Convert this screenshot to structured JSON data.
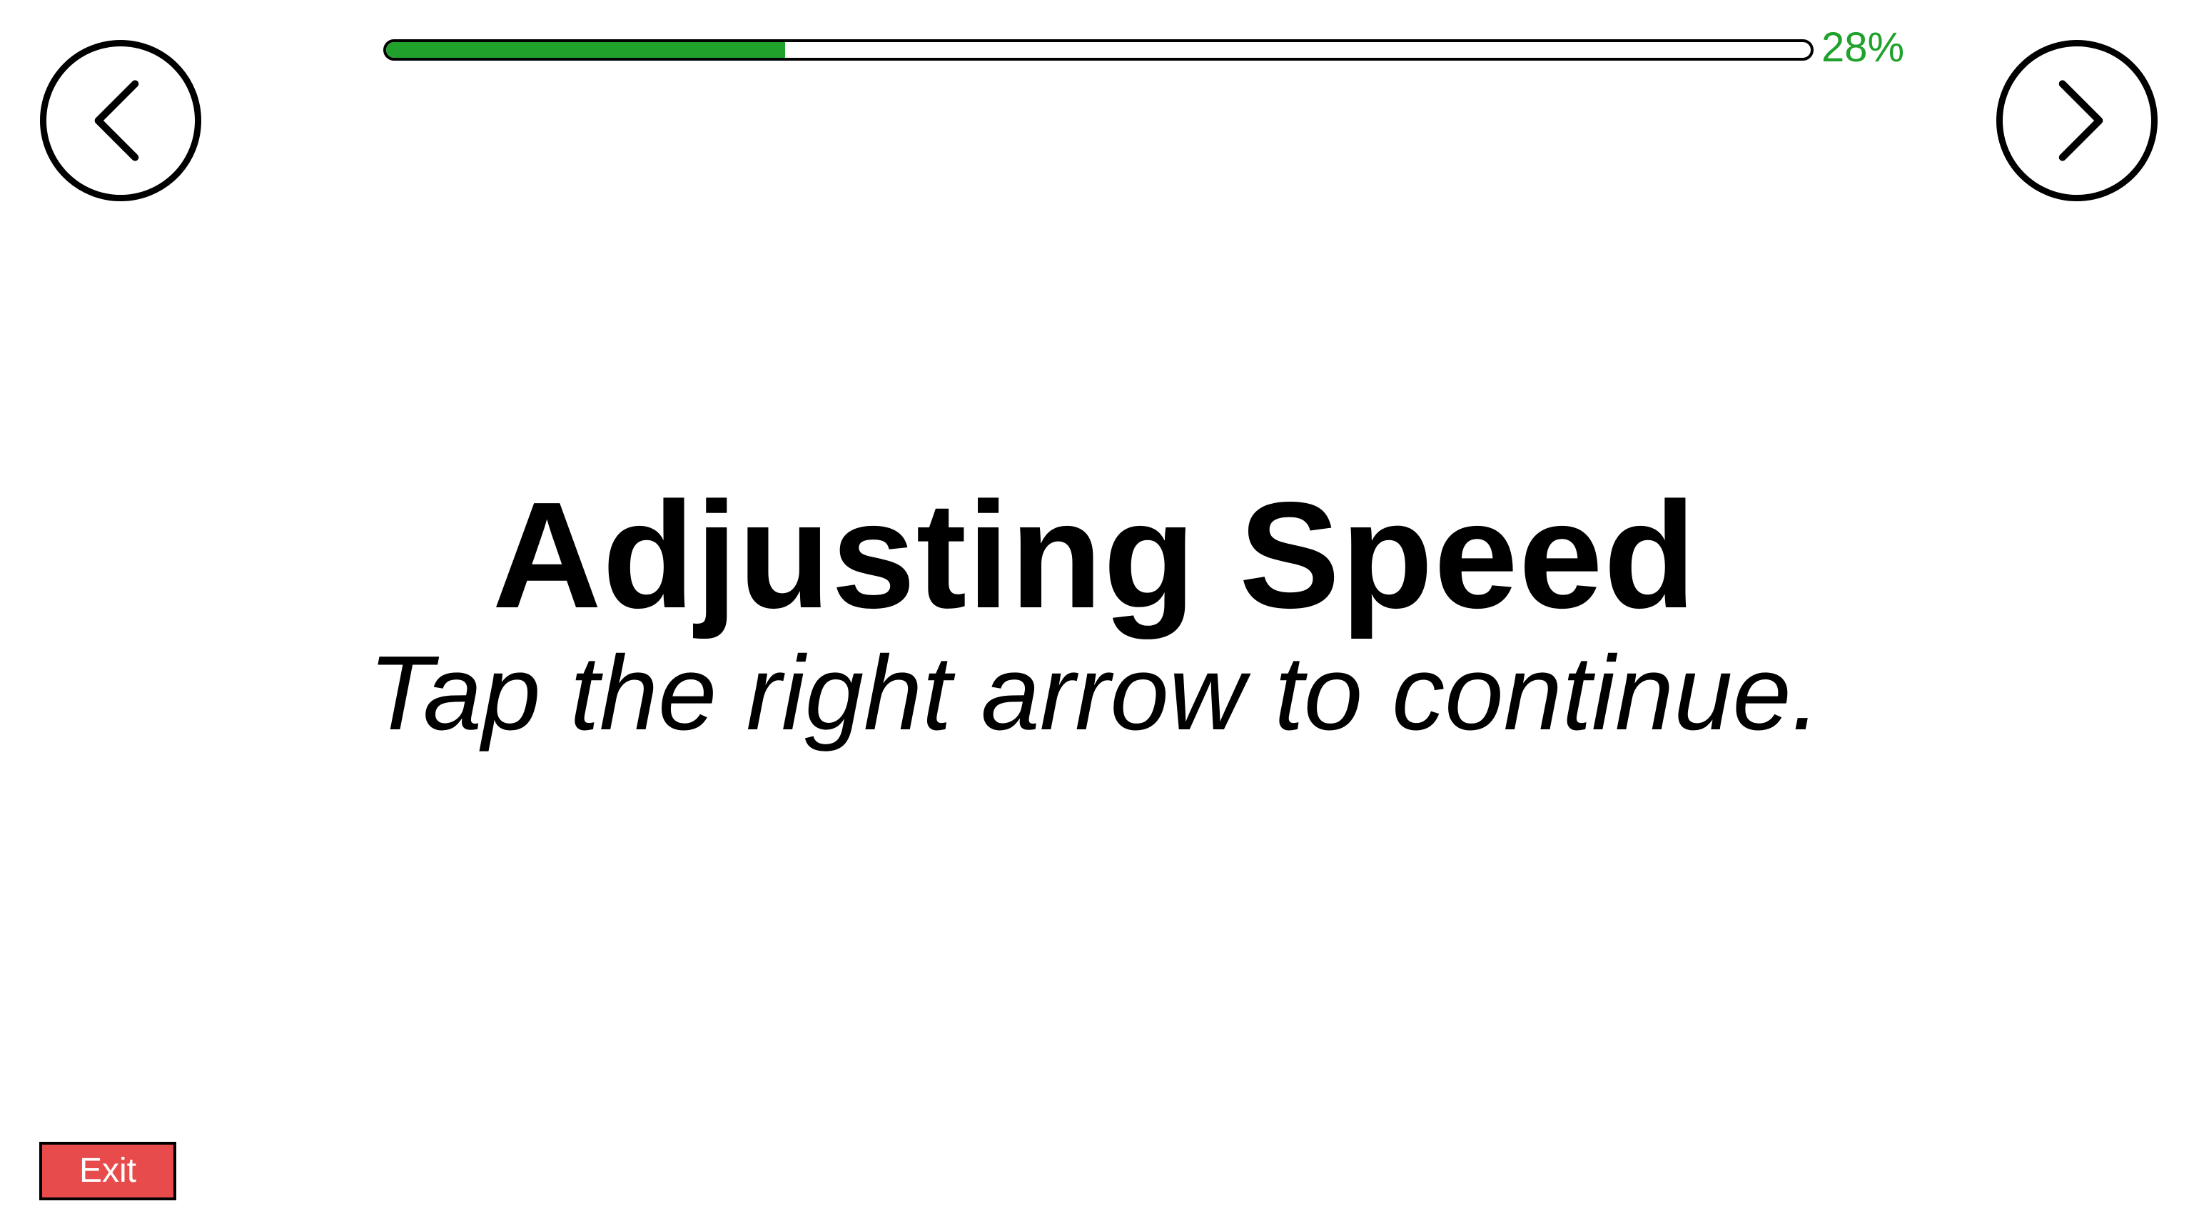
{
  "progress": {
    "value": 0.28,
    "label": "28%",
    "fill_color": "#1fa12b"
  },
  "navigation": {
    "back_icon": "chevron-left-icon",
    "next_icon": "chevron-right-icon"
  },
  "content": {
    "title": "Adjusting Speed",
    "subtitle": "Tap the right arrow to continue."
  },
  "exit": {
    "label": "Exit",
    "color": "#e84b4b"
  }
}
